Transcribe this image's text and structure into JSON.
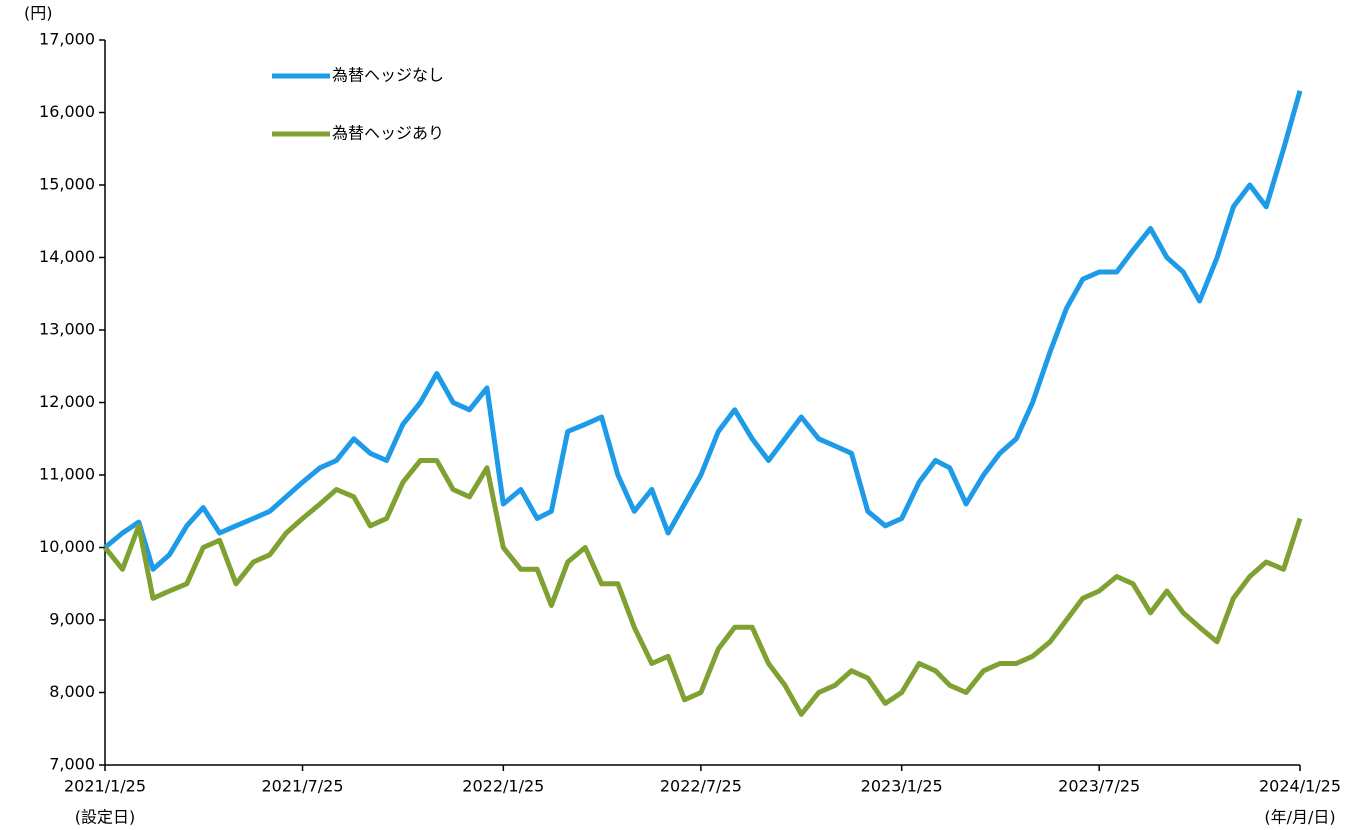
{
  "chart_data": {
    "type": "line",
    "y_unit": "(円)",
    "x_start_note": "(設定日)",
    "x_unit": "(年/月/日)",
    "x": [
      "2021/1/25",
      "2021/2/10",
      "2021/2/25",
      "2021/3/10",
      "2021/3/25",
      "2021/4/10",
      "2021/4/25",
      "2021/5/10",
      "2021/5/25",
      "2021/6/10",
      "2021/6/25",
      "2021/7/10",
      "2021/7/25",
      "2021/8/10",
      "2021/8/25",
      "2021/9/10",
      "2021/9/25",
      "2021/10/10",
      "2021/10/25",
      "2021/11/10",
      "2021/11/25",
      "2021/12/10",
      "2021/12/25",
      "2022/1/10",
      "2022/1/25",
      "2022/2/10",
      "2022/2/25",
      "2022/3/10",
      "2022/3/25",
      "2022/4/10",
      "2022/4/25",
      "2022/5/10",
      "2022/5/25",
      "2022/6/10",
      "2022/6/25",
      "2022/7/10",
      "2022/7/25",
      "2022/8/10",
      "2022/8/25",
      "2022/9/10",
      "2022/9/25",
      "2022/10/10",
      "2022/10/25",
      "2022/11/10",
      "2022/11/25",
      "2022/12/10",
      "2022/12/25",
      "2023/1/10",
      "2023/1/25",
      "2023/2/10",
      "2023/2/25",
      "2023/3/10",
      "2023/3/25",
      "2023/4/10",
      "2023/4/25",
      "2023/5/10",
      "2023/5/25",
      "2023/6/10",
      "2023/6/25",
      "2023/7/10",
      "2023/7/25",
      "2023/8/10",
      "2023/8/25",
      "2023/9/10",
      "2023/9/25",
      "2023/10/10",
      "2023/10/25",
      "2023/11/10",
      "2023/11/25",
      "2023/12/10",
      "2023/12/25",
      "2024/1/10",
      "2024/1/25"
    ],
    "series": [
      {
        "name": "為替ヘッジなし",
        "color": "#1e9be8",
        "values": [
          10000,
          10200,
          10350,
          9700,
          9900,
          10300,
          10550,
          10200,
          10300,
          10400,
          10500,
          10700,
          10900,
          11100,
          11200,
          11500,
          11300,
          11200,
          11700,
          12000,
          12400,
          12000,
          11900,
          12200,
          10600,
          10800,
          10400,
          10500,
          11600,
          11700,
          11800,
          11000,
          10500,
          10800,
          10200,
          10600,
          11000,
          11600,
          11900,
          11500,
          11200,
          11500,
          11800,
          11500,
          11400,
          11300,
          10500,
          10300,
          10400,
          10900,
          11200,
          11100,
          10600,
          11000,
          11300,
          11500,
          12000,
          12700,
          13300,
          13700,
          13800,
          13800,
          14100,
          14400,
          14000,
          13800,
          13400,
          14000,
          14700,
          15000,
          14700,
          15500,
          16300
        ]
      },
      {
        "name": "為替ヘッジあり",
        "color": "#7ea132",
        "values": [
          10000,
          9700,
          10300,
          9300,
          9400,
          9500,
          10000,
          10100,
          9500,
          9800,
          9900,
          10200,
          10400,
          10600,
          10800,
          10700,
          10300,
          10400,
          10900,
          11200,
          11200,
          10800,
          10700,
          11100,
          10000,
          9700,
          9700,
          9200,
          9800,
          10000,
          9500,
          9500,
          8900,
          8400,
          8500,
          7900,
          8000,
          8600,
          8900,
          8900,
          8400,
          8100,
          7700,
          8000,
          8100,
          8300,
          8200,
          7850,
          8000,
          8400,
          8300,
          8100,
          8000,
          8300,
          8400,
          8400,
          8500,
          8700,
          9000,
          9300,
          9400,
          9600,
          9500,
          9100,
          9400,
          9100,
          8900,
          8700,
          9300,
          9600,
          9800,
          9700,
          10400
        ]
      }
    ],
    "xlim": [
      "2021/1/25",
      "2024/1/25"
    ],
    "xticks": [
      "2021/1/25",
      "2021/7/25",
      "2022/1/25",
      "2022/7/25",
      "2023/1/25",
      "2023/7/25",
      "2024/1/25"
    ],
    "ylim": [
      7000,
      17000
    ],
    "yticks": [
      {
        "value": 7000,
        "label": "7,000"
      },
      {
        "value": 8000,
        "label": "8,000"
      },
      {
        "value": 9000,
        "label": "9,000"
      },
      {
        "value": 10000,
        "label": "10,000"
      },
      {
        "value": 11000,
        "label": "11,000"
      },
      {
        "value": 12000,
        "label": "12,000"
      },
      {
        "value": 13000,
        "label": "13,000"
      },
      {
        "value": 14000,
        "label": "14,000"
      },
      {
        "value": 15000,
        "label": "15,000"
      },
      {
        "value": 16000,
        "label": "16,000"
      },
      {
        "value": 17000,
        "label": "17,000"
      }
    ],
    "legend": "upper left"
  }
}
